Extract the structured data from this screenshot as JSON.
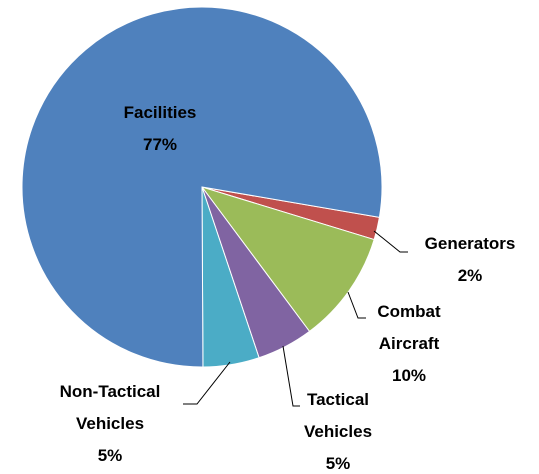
{
  "chart_data": {
    "type": "pie",
    "categories": [
      "Generators",
      "Combat Aircraft",
      "Tactical Vehicles",
      "Non-Tactical Vehicles",
      "Facilities"
    ],
    "values": [
      2,
      10,
      5,
      5,
      77
    ],
    "value_labels": [
      "2%",
      "10%",
      "5%",
      "5%",
      "77%"
    ],
    "colors": [
      "#c0504d",
      "#9bbb59",
      "#8064a2",
      "#4bacc6",
      "#4f81bd"
    ]
  }
}
